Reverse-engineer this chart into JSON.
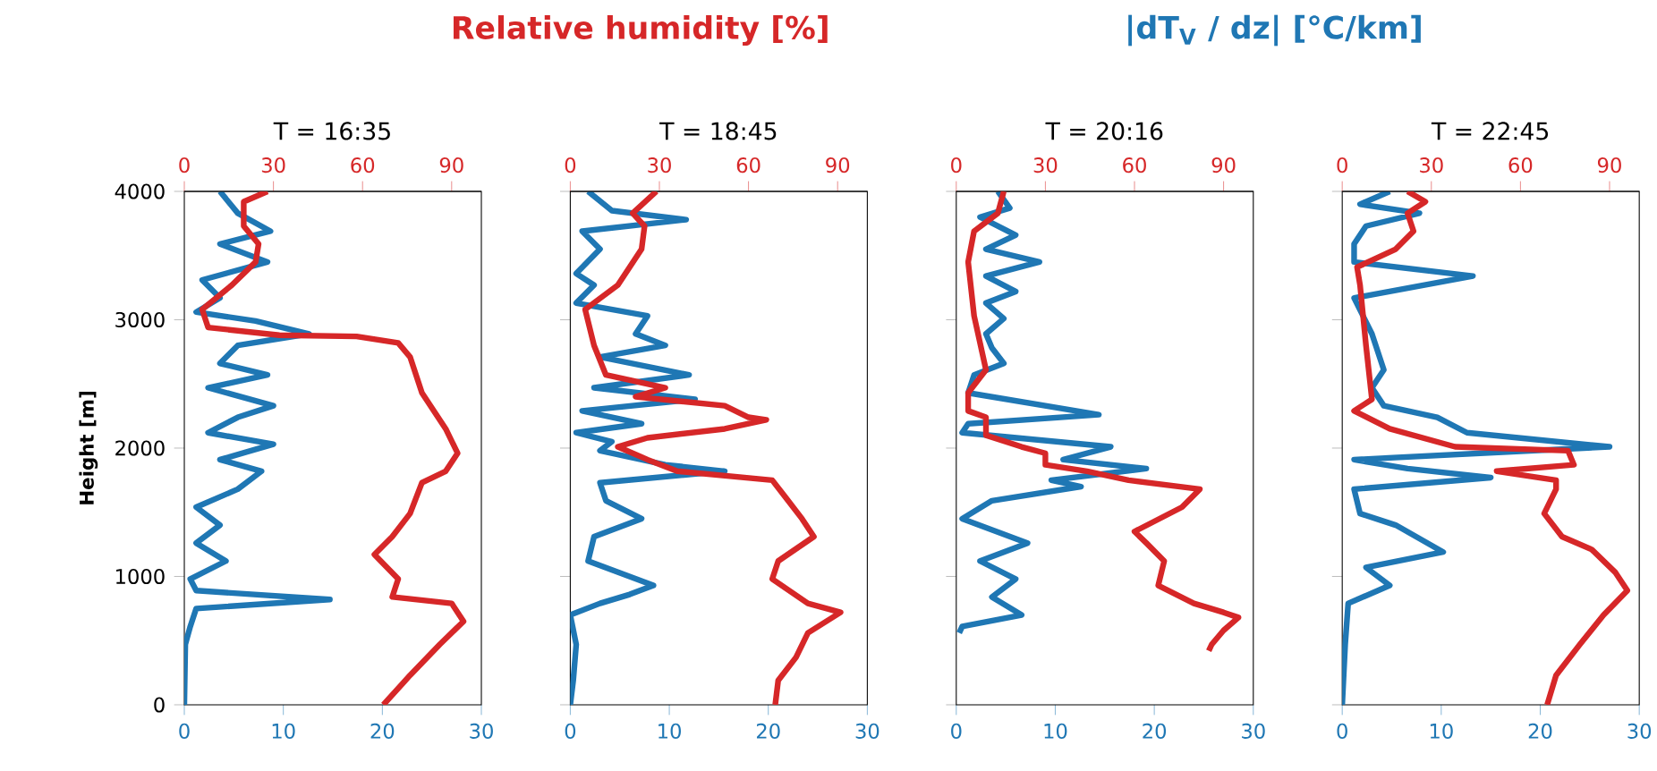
{
  "chart_data": [
    {
      "type": "line",
      "title": "T = 16:35",
      "ylabel": "Height [m]",
      "x2label": "Relative humidity [%]",
      "xlim": [
        0,
        30
      ],
      "xticks": [
        0,
        10,
        20,
        30
      ],
      "x2lim": [
        0,
        100
      ],
      "x2ticks": [
        0,
        30,
        60,
        90
      ],
      "ylim": [
        0,
        4000
      ],
      "yticks": [
        0,
        1000,
        2000,
        3000,
        4000
      ],
      "series": [
        {
          "color": "#1f77b4",
          "x": [
            3.6,
            5.4,
            8.7,
            3.6,
            8.4,
            1.8,
            3.6,
            1.2,
            7.2,
            12.6,
            5.4,
            3.6,
            8.4,
            2.4,
            9,
            5.4,
            2.4,
            9,
            3.6,
            7.8,
            5.4,
            1.2,
            3.6,
            1.2,
            4.2,
            0.6,
            1.2,
            14.7,
            1.2,
            0.6,
            0.1,
            0
          ],
          "values": [
            4000,
            3830,
            3690,
            3590,
            3450,
            3310,
            3170,
            3060,
            2990,
            2890,
            2800,
            2660,
            2570,
            2470,
            2330,
            2240,
            2120,
            2030,
            1910,
            1820,
            1680,
            1540,
            1400,
            1260,
            1120,
            980,
            890,
            820,
            750,
            610,
            470,
            0
          ]
        },
        {
          "color": "#d62728",
          "axis": "x2",
          "x": [
            28,
            20,
            20,
            25,
            24,
            16,
            6,
            8,
            32,
            58,
            72,
            76,
            80,
            88,
            92,
            88,
            80,
            76,
            70,
            64,
            72,
            70,
            90,
            94,
            86,
            76,
            67
          ],
          "values": [
            4000,
            3920,
            3730,
            3590,
            3450,
            3270,
            3080,
            2940,
            2880,
            2870,
            2820,
            2710,
            2430,
            2150,
            1960,
            1820,
            1730,
            1490,
            1310,
            1170,
            980,
            840,
            790,
            650,
            470,
            230,
            0
          ]
        }
      ]
    },
    {
      "type": "line",
      "title": "T = 18:45",
      "tick_labels": "x",
      "xlim": [
        0,
        30
      ],
      "xticks": [
        0,
        10,
        20,
        30
      ],
      "x2lim": [
        0,
        100
      ],
      "x2ticks": [
        0,
        30,
        60,
        90
      ],
      "ylim": [
        0,
        4000
      ],
      "yticks": [
        0,
        1000,
        2000,
        3000,
        4000
      ],
      "series": [
        {
          "color": "#1f77b4",
          "x": [
            1.8,
            4.2,
            11.7,
            1.2,
            3,
            0.6,
            2.4,
            0.6,
            7.8,
            6.6,
            9.6,
            3,
            12,
            2.4,
            12.6,
            1.2,
            7.2,
            0.6,
            4.2,
            3,
            9.6,
            15.6,
            3,
            3.6,
            7.2,
            2.4,
            1.8,
            8.4,
            6,
            3,
            0,
            0.6,
            0.3,
            0
          ],
          "values": [
            4000,
            3850,
            3780,
            3690,
            3550,
            3360,
            3270,
            3130,
            3030,
            2890,
            2800,
            2710,
            2570,
            2470,
            2380,
            2290,
            2190,
            2120,
            2050,
            1980,
            1870,
            1820,
            1730,
            1590,
            1450,
            1310,
            1120,
            930,
            860,
            790,
            700,
            470,
            190,
            0
          ]
        },
        {
          "color": "#d62728",
          "axis": "x2",
          "x": [
            29,
            21,
            25,
            24,
            16,
            5,
            8,
            12,
            32,
            22,
            52,
            60,
            66,
            52,
            26,
            16,
            26,
            36,
            68,
            72,
            78,
            82,
            70,
            68,
            80,
            91,
            80,
            76,
            70,
            69
          ],
          "values": [
            4000,
            3830,
            3730,
            3550,
            3270,
            3080,
            2800,
            2570,
            2470,
            2400,
            2330,
            2240,
            2220,
            2150,
            2080,
            2010,
            1910,
            1820,
            1750,
            1630,
            1450,
            1310,
            1120,
            980,
            790,
            720,
            560,
            370,
            190,
            0
          ]
        }
      ]
    },
    {
      "type": "line",
      "title": "T = 20:16",
      "xlabel": "|dT$_{V}$ / dz|  [°C/km]",
      "tick_labels": "x",
      "xlim": [
        0,
        30
      ],
      "xticks": [
        0,
        10,
        20,
        30
      ],
      "x2lim": [
        0,
        100
      ],
      "x2ticks": [
        0,
        30,
        60,
        90
      ],
      "ylim": [
        0,
        4000
      ],
      "yticks": [
        0,
        1000,
        2000,
        3000,
        4000
      ],
      "series": [
        {
          "color": "#1f77b4",
          "x": [
            4.2,
            5.4,
            2.4,
            6,
            3,
            8.4,
            3,
            6,
            3,
            4.8,
            3,
            3.6,
            4.8,
            1.8,
            1.2,
            14.4,
            1.2,
            0.6,
            15.6,
            10.8,
            19.2,
            9.6,
            12.6,
            3.6,
            0.6,
            7.2,
            2.4,
            6,
            3.6,
            6.6,
            0.6,
            0.3
          ],
          "values": [
            4000,
            3870,
            3800,
            3660,
            3550,
            3450,
            3340,
            3220,
            3130,
            3010,
            2890,
            2780,
            2660,
            2570,
            2430,
            2260,
            2190,
            2120,
            2010,
            1910,
            1840,
            1750,
            1700,
            1590,
            1450,
            1260,
            1120,
            980,
            840,
            700,
            610,
            560
          ]
        },
        {
          "color": "#d62728",
          "axis": "x2",
          "x": [
            16,
            14,
            6,
            4,
            6,
            10,
            4,
            4,
            10,
            10,
            22,
            30,
            30,
            44,
            58,
            82,
            76,
            60,
            64,
            70,
            68,
            80,
            90,
            95,
            90,
            86,
            85
          ],
          "values": [
            4000,
            3830,
            3690,
            3450,
            3030,
            2610,
            2430,
            2290,
            2240,
            2100,
            2010,
            1960,
            1870,
            1820,
            1750,
            1680,
            1540,
            1350,
            1260,
            1120,
            930,
            790,
            720,
            680,
            580,
            470,
            420
          ]
        }
      ]
    },
    {
      "type": "line",
      "title": "T = 22:45",
      "tick_labels": "x",
      "xlim": [
        0,
        30
      ],
      "xticks": [
        0,
        10,
        20,
        30
      ],
      "x2lim": [
        0,
        100
      ],
      "x2ticks": [
        0,
        30,
        60,
        90
      ],
      "ylim": [
        0,
        4000
      ],
      "yticks": [
        0,
        1000,
        2000,
        3000,
        4000
      ],
      "series": [
        {
          "color": "#1f77b4",
          "x": [
            4.8,
            1.8,
            7.8,
            2.4,
            1.2,
            1.2,
            13.2,
            1.2,
            3,
            4.2,
            3,
            4.2,
            9.6,
            12.6,
            27,
            1.2,
            6.6,
            15,
            1.2,
            1.8,
            5.4,
            10.2,
            2.4,
            4.8,
            0.6,
            0.3,
            0
          ],
          "values": [
            4000,
            3900,
            3830,
            3730,
            3590,
            3450,
            3340,
            3170,
            2890,
            2610,
            2470,
            2330,
            2240,
            2120,
            2010,
            1910,
            1840,
            1770,
            1680,
            1490,
            1400,
            1190,
            1070,
            930,
            790,
            470,
            0
          ]
        },
        {
          "color": "#d62728",
          "axis": "x2",
          "x": [
            22,
            28,
            22,
            24,
            18,
            5,
            6,
            8,
            10,
            4,
            16,
            38,
            76,
            78,
            52,
            72,
            72,
            68,
            74,
            84,
            92,
            96,
            88,
            80,
            72,
            69
          ],
          "values": [
            4000,
            3920,
            3830,
            3690,
            3550,
            3410,
            3270,
            2800,
            2380,
            2290,
            2150,
            2010,
            1980,
            1870,
            1820,
            1750,
            1680,
            1490,
            1310,
            1210,
            1030,
            890,
            700,
            470,
            230,
            0
          ]
        }
      ]
    }
  ]
}
